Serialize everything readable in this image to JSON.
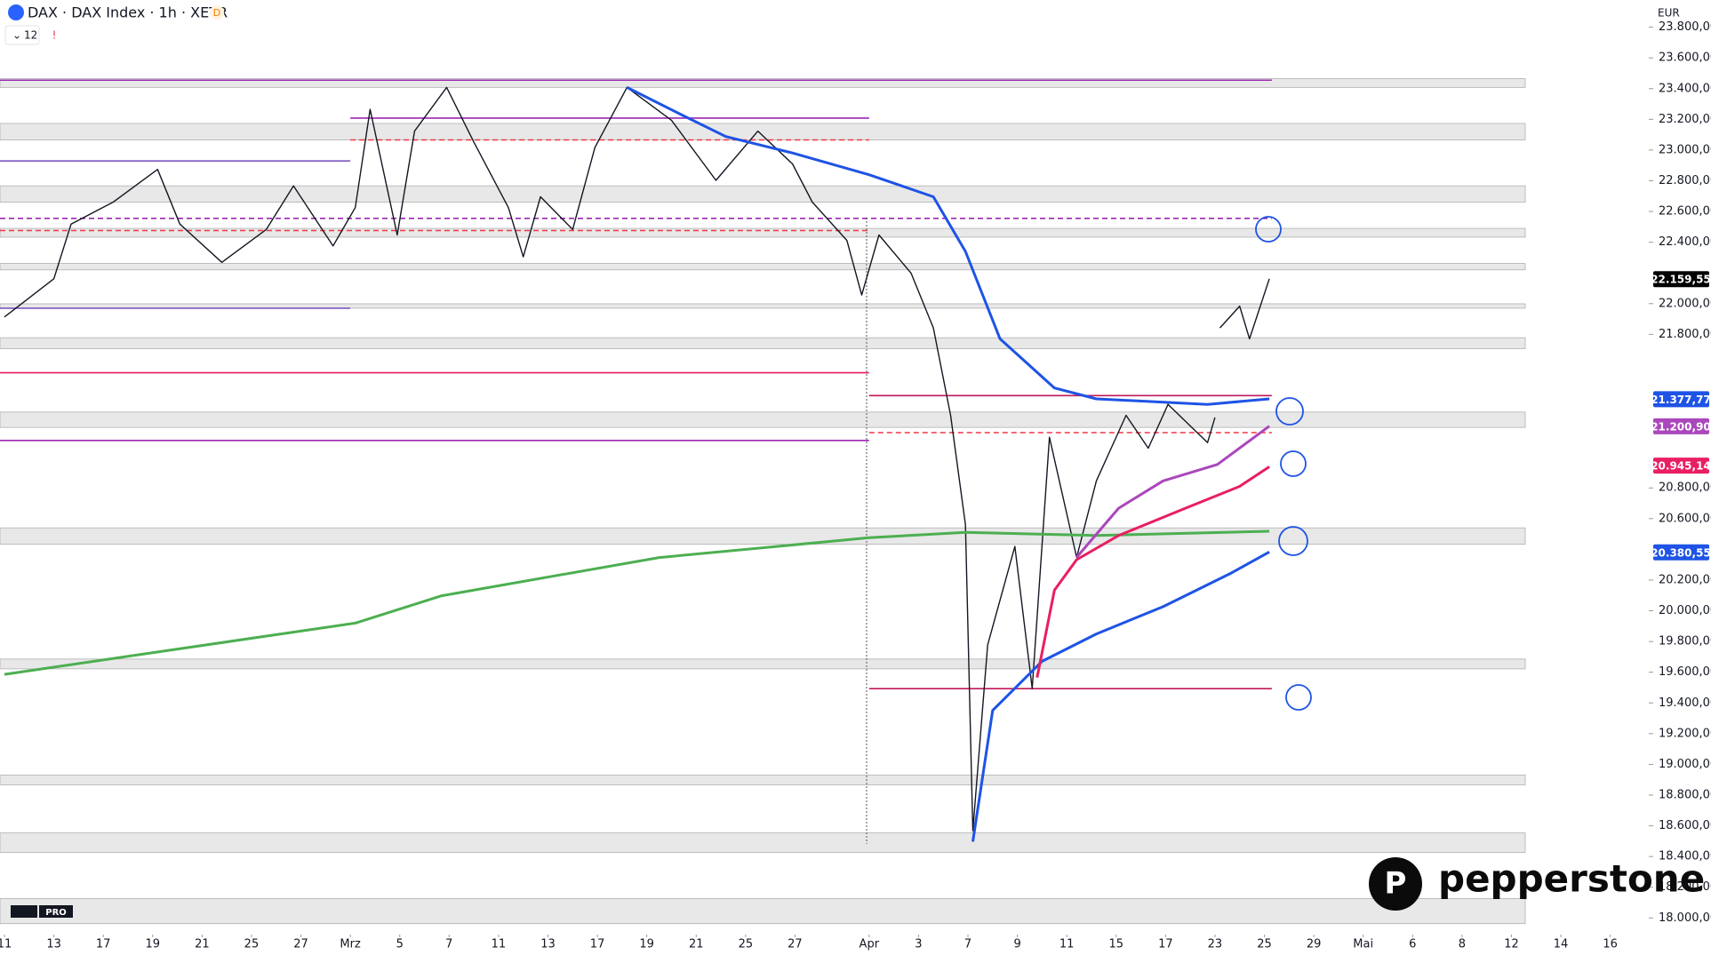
{
  "chart_data": {
    "type": "line",
    "title": "DAX · DAX Index · 1h · XETR",
    "interval_badge": "D",
    "indicator_count": 12,
    "currency": "EUR",
    "brand": "pepperstone",
    "tv_badge": "PRO",
    "xlim": [
      -0.18,
      66.2
    ],
    "ylim": [
      17915,
      23977
    ],
    "grid": false,
    "xticks": [
      {
        "value": 0,
        "label": "11"
      },
      {
        "value": 2,
        "label": "13"
      },
      {
        "value": 4,
        "label": "17"
      },
      {
        "value": 6,
        "label": "19"
      },
      {
        "value": 8,
        "label": "21"
      },
      {
        "value": 10,
        "label": "25"
      },
      {
        "value": 12,
        "label": "27"
      },
      {
        "value": 14,
        "label": "Mrz"
      },
      {
        "value": 16,
        "label": "5"
      },
      {
        "value": 18,
        "label": "7"
      },
      {
        "value": 20,
        "label": "11"
      },
      {
        "value": 22,
        "label": "13"
      },
      {
        "value": 24,
        "label": "17"
      },
      {
        "value": 26,
        "label": "19"
      },
      {
        "value": 28,
        "label": "21"
      },
      {
        "value": 30,
        "label": "25"
      },
      {
        "value": 32,
        "label": "27"
      },
      {
        "value": 35,
        "label": "Apr"
      },
      {
        "value": 37,
        "label": "3"
      },
      {
        "value": 39,
        "label": "7"
      },
      {
        "value": 41,
        "label": "9"
      },
      {
        "value": 43,
        "label": "11"
      },
      {
        "value": 45,
        "label": "15"
      },
      {
        "value": 47,
        "label": "17"
      },
      {
        "value": 49,
        "label": "23"
      },
      {
        "value": 51,
        "label": "25"
      },
      {
        "value": 53,
        "label": "29"
      },
      {
        "value": 55,
        "label": "Mai"
      },
      {
        "value": 57,
        "label": "6"
      },
      {
        "value": 59,
        "label": "8"
      },
      {
        "value": 61,
        "label": "12"
      },
      {
        "value": 63,
        "label": "14"
      },
      {
        "value": 65,
        "label": "16"
      }
    ],
    "yticks": [
      {
        "value": 18000,
        "label": "18.000,00"
      },
      {
        "value": 18200,
        "label": "18.200,00"
      },
      {
        "value": 18400,
        "label": "18.400,00"
      },
      {
        "value": 18600,
        "label": "18.600,00"
      },
      {
        "value": 18800,
        "label": "18.800,00"
      },
      {
        "value": 19000,
        "label": "19.000,00"
      },
      {
        "value": 19200,
        "label": "19.200,00"
      },
      {
        "value": 19400,
        "label": "19.400,00"
      },
      {
        "value": 19600,
        "label": "19.600,00"
      },
      {
        "value": 19800,
        "label": "19.800,00"
      },
      {
        "value": 20000,
        "label": "20.000,00"
      },
      {
        "value": 20200,
        "label": "20.200,00"
      },
      {
        "value": 20600,
        "label": "20.600,00"
      },
      {
        "value": 20800,
        "label": "20.800,00"
      },
      {
        "value": 21800,
        "label": "21.800,00"
      },
      {
        "value": 22000,
        "label": "22.000,00"
      },
      {
        "value": 22400,
        "label": "22.400,00"
      },
      {
        "value": 22600,
        "label": "22.600,00"
      },
      {
        "value": 22800,
        "label": "22.800,00"
      },
      {
        "value": 23000,
        "label": "23.000,00"
      },
      {
        "value": 23200,
        "label": "23.200,00"
      },
      {
        "value": 23400,
        "label": "23.400,00"
      },
      {
        "value": 23600,
        "label": "23.600,00"
      },
      {
        "value": 23800,
        "label": "23.800,00"
      }
    ],
    "zones": [
      [
        23408,
        23465
      ],
      [
        23066,
        23173
      ],
      [
        22661,
        22767
      ],
      [
        22433,
        22490
      ],
      [
        22220,
        22262
      ],
      [
        21970,
        21999
      ],
      [
        21707,
        21778
      ],
      [
        21194,
        21294
      ],
      [
        20433,
        20540
      ],
      [
        19622,
        19686
      ],
      [
        18867,
        18931
      ],
      [
        18426,
        18554
      ],
      [
        17963,
        18127
      ]
    ],
    "levels": [
      {
        "value": 23455,
        "color": "#9c27b0",
        "from": -0.18,
        "to": 51.3,
        "dashed": false
      },
      {
        "value": 23208,
        "color": "#9c27b0",
        "from": 14,
        "to": 35,
        "dashed": false
      },
      {
        "value": 23066,
        "color": "#f23645",
        "from": 14,
        "to": 35,
        "dashed": true
      },
      {
        "value": 22929,
        "color": "#7e57c2",
        "from": -0.18,
        "to": 14,
        "dashed": false
      },
      {
        "value": 22555,
        "color": "#9c27b0",
        "from": -0.18,
        "to": 51.3,
        "dashed": true
      },
      {
        "value": 22476,
        "color": "#f23645",
        "from": -0.18,
        "to": 35,
        "dashed": true
      },
      {
        "value": 21970,
        "color": "#7e57c2",
        "from": -0.18,
        "to": 14,
        "dashed": false
      },
      {
        "value": 21550,
        "color": "#e91e63",
        "from": -0.18,
        "to": 35,
        "dashed": false
      },
      {
        "value": 21401,
        "color": "#c2185b",
        "from": 35,
        "to": 51.3,
        "dashed": false
      },
      {
        "value": 21109,
        "color": "#9c27b0",
        "from": -0.18,
        "to": 35,
        "dashed": false
      },
      {
        "value": 21160,
        "color": "#f23645",
        "from": 35,
        "to": 51.3,
        "dashed": true
      },
      {
        "value": 19493,
        "color": "#c2185b",
        "from": 35,
        "to": 51.3,
        "dashed": false
      }
    ],
    "series": [
      {
        "color": "#131722",
        "x": [
          0,
          2,
          2.7,
          4.4,
          6.2,
          7.1,
          8.8,
          10.6,
          11.7,
          13.3,
          14.2,
          14.8,
          15.9,
          16.6,
          17.9,
          19,
          20.4,
          21,
          21.7,
          23,
          23.9,
          25.2,
          27,
          28.8,
          30.5,
          31.9,
          32.7,
          34.1,
          34.7,
          35.4,
          36.7,
          37.6,
          38.3,
          38.9,
          39.2,
          39.8,
          40.9,
          41.6,
          42.3,
          43.4,
          44.2,
          45.4,
          46.3,
          47.1,
          48.7,
          49,
          49.1,
          49.2,
          50,
          50.4,
          51.2
        ],
        "values": [
          21913,
          22162,
          22518,
          22661,
          22874,
          22518,
          22269,
          22483,
          22767,
          22376,
          22625,
          23265,
          22447,
          23123,
          23408,
          23052,
          22625,
          22305,
          22696,
          22483,
          23016,
          23408,
          23194,
          22803,
          23123,
          22910,
          22661,
          22412,
          22056,
          22447,
          22198,
          21842,
          21273,
          20561,
          18568,
          19778,
          20419,
          19494,
          21130,
          20348,
          20846,
          21273,
          21059,
          21344,
          21095,
          21259,
          null,
          21842,
          21984,
          21771,
          22162
        ]
      },
      {
        "color": "#4caf50",
        "x": [
          0,
          14.2,
          17.7,
          26.5,
          35,
          38.9,
          44.2,
          51.2
        ],
        "values": [
          19586,
          19920,
          20098,
          20347,
          20476,
          20511,
          20490,
          20518
        ]
      },
      {
        "color": "#1e53e5",
        "x": [
          25.2,
          27.4,
          29.2,
          31.9,
          35,
          37.6,
          38.9,
          40.3,
          42.5,
          44.2,
          48.7,
          51.2
        ],
        "values": [
          23408,
          23230,
          23088,
          22981,
          22839,
          22696,
          22340,
          21771,
          21451,
          21380,
          21344,
          21380
        ]
      },
      {
        "color": "#1e53e5",
        "x": [
          39.2,
          40,
          42,
          44.2,
          46.9,
          49.6,
          51.2
        ],
        "values": [
          18497,
          19351,
          19671,
          19849,
          20027,
          20241,
          20383
        ]
      },
      {
        "color": "#e91e63",
        "x": [
          41.8,
          42.5,
          43.4,
          45.1,
          47.8,
          50,
          51.2
        ],
        "values": [
          19565,
          20134,
          20333,
          20490,
          20668,
          20810,
          20938
        ]
      },
      {
        "color": "#ab47bc",
        "x": [
          43.4,
          45.1,
          46.9,
          49.1,
          51.2
        ],
        "values": [
          20348,
          20668,
          20846,
          20953,
          21202
        ]
      }
    ],
    "price_tags": [
      {
        "value": 22159.55,
        "label": "22.159,55",
        "color": "#000000"
      },
      {
        "value": 21377.77,
        "label": "21.377,77",
        "color": "#1e53e5"
      },
      {
        "value": 21200.9,
        "label": "21.200,90",
        "color": "#ab47bc"
      },
      {
        "value": 20945.14,
        "label": "20.945,14",
        "color": "#e91e63"
      },
      {
        "value": 20380.55,
        "label": "20.380,55",
        "color": "#1e53e5"
      }
    ]
  }
}
